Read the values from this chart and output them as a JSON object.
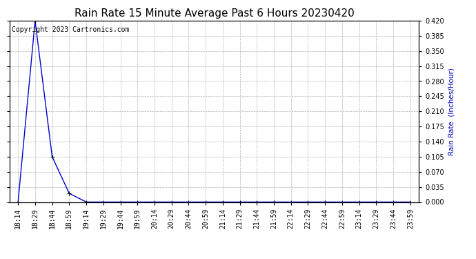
{
  "title": "Rain Rate 15 Minute Average Past 6 Hours 20230420",
  "ylabel": "Rain Rate  (Inches/Hour)",
  "ylabel_color": "#0000bb",
  "copyright_text": "Copyright 2023 Cartronics.com",
  "copyright_color": "#000000",
  "background_color": "#ffffff",
  "grid_color": "#aaaaaa",
  "line_color": "#0000cc",
  "marker_color": "#000000",
  "x_labels": [
    "18:14",
    "18:29",
    "18:44",
    "18:59",
    "19:14",
    "19:29",
    "19:44",
    "19:59",
    "20:14",
    "20:29",
    "20:44",
    "20:59",
    "21:14",
    "21:29",
    "21:44",
    "21:59",
    "22:14",
    "22:29",
    "22:44",
    "22:59",
    "23:14",
    "23:29",
    "23:44",
    "23:59"
  ],
  "y_values": [
    0.0,
    0.42,
    0.105,
    0.02,
    0.0,
    0.0,
    0.0,
    0.0,
    0.0,
    0.0,
    0.0,
    0.0,
    0.0,
    0.0,
    0.0,
    0.0,
    0.0,
    0.0,
    0.0,
    0.0,
    0.0,
    0.0,
    0.0,
    0.0
  ],
  "ylim": [
    0.0,
    0.42
  ],
  "yticks": [
    0.0,
    0.035,
    0.07,
    0.105,
    0.14,
    0.175,
    0.21,
    0.245,
    0.28,
    0.315,
    0.35,
    0.385,
    0.42
  ],
  "title_fontsize": 11,
  "label_fontsize": 7.5,
  "tick_fontsize": 7.0,
  "copyright_fontsize": 7.0
}
